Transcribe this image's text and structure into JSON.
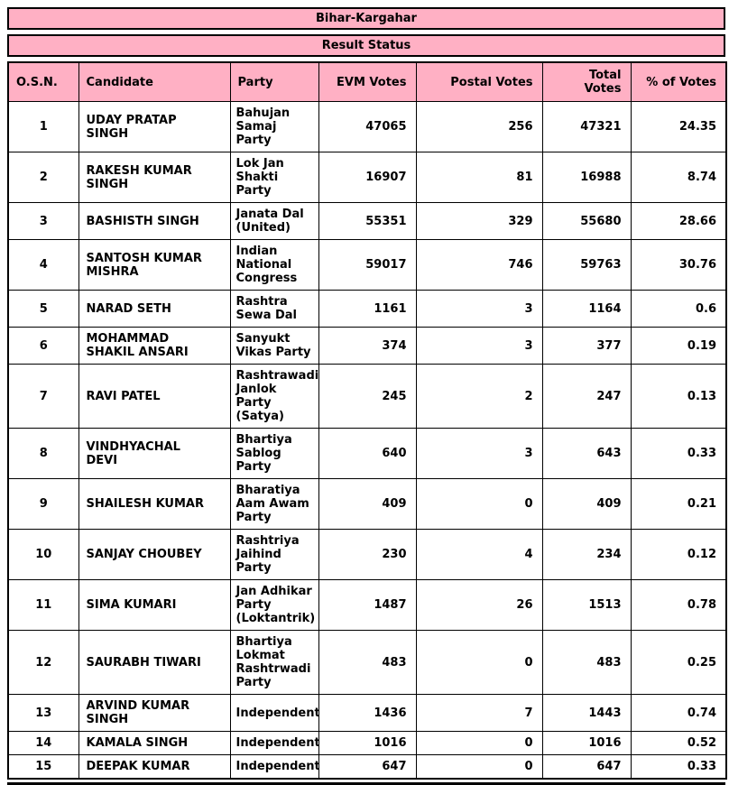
{
  "page": {
    "title": "Bihar-Kargahar",
    "status": "Result Status"
  },
  "colors": {
    "header_bg": "#ffb0c4",
    "border": "#000000",
    "text": "#000000",
    "page_bg": "#ffffff"
  },
  "table": {
    "columns": [
      {
        "key": "osn",
        "label": "O.S.N."
      },
      {
        "key": "candidate",
        "label": "Candidate"
      },
      {
        "key": "party",
        "label": "Party"
      },
      {
        "key": "evm",
        "label": "EVM Votes"
      },
      {
        "key": "postal",
        "label": "Postal Votes"
      },
      {
        "key": "total",
        "label": "Total Votes"
      },
      {
        "key": "pct",
        "label": "% of Votes"
      }
    ],
    "rows": [
      {
        "osn": "1",
        "candidate": "UDAY PRATAP SINGH",
        "party": "Bahujan Samaj Party",
        "evm": "47065",
        "postal": "256",
        "total": "47321",
        "pct": "24.35"
      },
      {
        "osn": "2",
        "candidate": "RAKESH KUMAR SINGH",
        "party": "Lok Jan Shakti Party",
        "evm": "16907",
        "postal": "81",
        "total": "16988",
        "pct": "8.74"
      },
      {
        "osn": "3",
        "candidate": "BASHISTH SINGH",
        "party": "Janata Dal (United)",
        "evm": "55351",
        "postal": "329",
        "total": "55680",
        "pct": "28.66"
      },
      {
        "osn": "4",
        "candidate": "SANTOSH KUMAR MISHRA",
        "party": "Indian National Congress",
        "evm": "59017",
        "postal": "746",
        "total": "59763",
        "pct": "30.76"
      },
      {
        "osn": "5",
        "candidate": "NARAD SETH",
        "party": "Rashtra Sewa Dal",
        "evm": "1161",
        "postal": "3",
        "total": "1164",
        "pct": "0.6"
      },
      {
        "osn": "6",
        "candidate": "MOHAMMAD SHAKIL ANSARI",
        "party": "Sanyukt Vikas Party",
        "evm": "374",
        "postal": "3",
        "total": "377",
        "pct": "0.19"
      },
      {
        "osn": "7",
        "candidate": "RAVI PATEL",
        "party": "Rashtrawadi Janlok Party (Satya)",
        "evm": "245",
        "postal": "2",
        "total": "247",
        "pct": "0.13"
      },
      {
        "osn": "8",
        "candidate": "VINDHYACHAL DEVI",
        "party": "Bhartiya Sablog Party",
        "evm": "640",
        "postal": "3",
        "total": "643",
        "pct": "0.33"
      },
      {
        "osn": "9",
        "candidate": "SHAILESH KUMAR",
        "party": "Bharatiya Aam Awam Party",
        "evm": "409",
        "postal": "0",
        "total": "409",
        "pct": "0.21"
      },
      {
        "osn": "10",
        "candidate": "SANJAY CHOUBEY",
        "party": "Rashtriya Jaihind Party",
        "evm": "230",
        "postal": "4",
        "total": "234",
        "pct": "0.12"
      },
      {
        "osn": "11",
        "candidate": "SIMA KUMARI",
        "party": "Jan Adhikar Party (Loktantrik)",
        "evm": "1487",
        "postal": "26",
        "total": "1513",
        "pct": "0.78"
      },
      {
        "osn": "12",
        "candidate": "SAURABH TIWARI",
        "party": "Bhartiya Lokmat Rashtrwadi Party",
        "evm": "483",
        "postal": "0",
        "total": "483",
        "pct": "0.25"
      },
      {
        "osn": "13",
        "candidate": "ARVIND KUMAR SINGH",
        "party": "Independent",
        "evm": "1436",
        "postal": "7",
        "total": "1443",
        "pct": "0.74"
      },
      {
        "osn": "14",
        "candidate": "KAMALA SINGH",
        "party": "Independent",
        "evm": "1016",
        "postal": "0",
        "total": "1016",
        "pct": "0.52"
      },
      {
        "osn": "15",
        "candidate": "DEEPAK KUMAR",
        "party": "Independent",
        "evm": "647",
        "postal": "0",
        "total": "647",
        "pct": "0.33"
      }
    ]
  }
}
